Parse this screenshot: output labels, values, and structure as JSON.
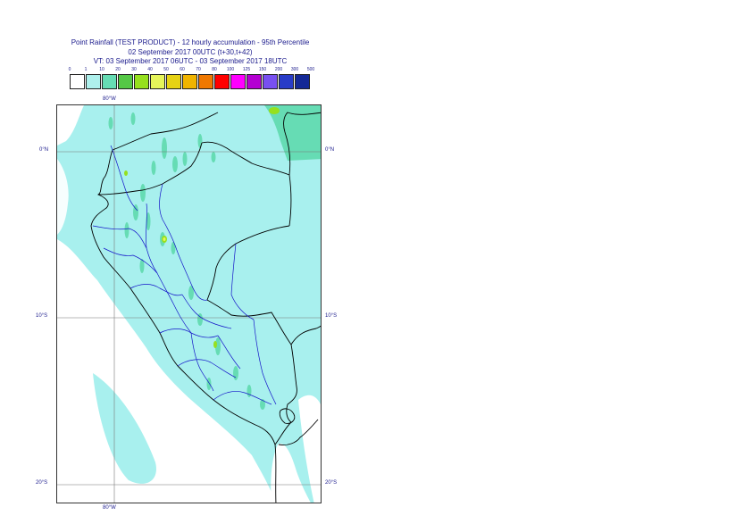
{
  "header": {
    "title_line1": "Point Rainfall (TEST PRODUCT) - 12 hourly accumulation - 95th Percentile",
    "title_line2": "02 September 2017 00UTC (t+30,t+42)",
    "title_line3": "VT: 03 September 2017 06UTC - 03 September 2017 18UTC"
  },
  "legend": {
    "thresholds": [
      "0",
      "1",
      "10",
      "20",
      "30",
      "40",
      "50",
      "60",
      "70",
      "80",
      "100",
      "125",
      "150",
      "200",
      "300",
      "500"
    ],
    "colors": [
      "#ffffff",
      "#aef0ec",
      "#66dcb4",
      "#55c846",
      "#96e01e",
      "#e6f55a",
      "#e6d214",
      "#f0b400",
      "#f07800",
      "#ff0000",
      "#ff00ff",
      "#b400d2",
      "#7850f0",
      "#283cc8",
      "#142896",
      "#0a0a50"
    ]
  },
  "map": {
    "colors": {
      "sea": "#ffffff",
      "rain_light": "#a8f0ee",
      "rain_moderate": "#66dcb4",
      "rain_heavy": "#96e01e",
      "rain_very_heavy": "#e6f55a",
      "coastline": "#000000",
      "border": "#000000",
      "admin": "#1414c8",
      "grid": "#777777"
    },
    "lat_labels": {
      "n0_left": "0°N",
      "n0_right": "0°N",
      "s10_left": "10°S",
      "s10_right": "10°S",
      "s20_left": "20°S",
      "s20_right": "20°S"
    },
    "lon_labels": {
      "top": "80°W",
      "bottom": "80°W"
    }
  }
}
